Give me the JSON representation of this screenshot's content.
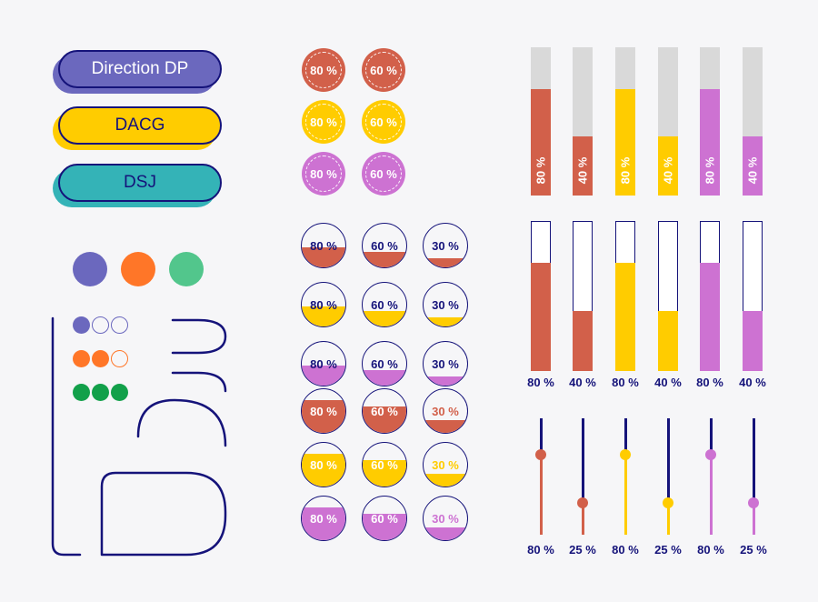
{
  "colors": {
    "navy": "#15137a",
    "purple": "#6b68be",
    "orange": "#ff7628",
    "green": "#52c68c",
    "rust": "#d2604a",
    "yellow": "#ffcc00",
    "violet": "#cd72d2",
    "teal": "#34b3b7",
    "gray": "#d9d9d9",
    "lime": "#12a04a"
  },
  "buttons": [
    {
      "label": "Direction DP",
      "bg": "#6b68be",
      "text": "#ffffff"
    },
    {
      "label": "DACG",
      "bg": "#ffcc00",
      "text": "#15137a"
    },
    {
      "label": "DSJ",
      "bg": "#34b3b7",
      "text": "#15137a"
    }
  ],
  "dashed_rings": [
    {
      "value": "80 %",
      "color": "#d2604a"
    },
    {
      "value": "60 %",
      "color": "#d2604a"
    },
    {
      "value": "80 %",
      "color": "#ffcc00"
    },
    {
      "value": "60 %",
      "color": "#ffcc00"
    },
    {
      "value": "80 %",
      "color": "#cd72d2"
    },
    {
      "value": "60 %",
      "color": "#cd72d2"
    }
  ],
  "fill_circles": [
    {
      "value": "80 %",
      "fraction": 0.45,
      "color": "#d2604a",
      "text": "#15137a"
    },
    {
      "value": "60 %",
      "fraction": 0.35,
      "color": "#d2604a",
      "text": "#15137a"
    },
    {
      "value": "30 %",
      "fraction": 0.2,
      "color": "#d2604a",
      "text": "#15137a"
    },
    {
      "value": "80 %",
      "fraction": 0.45,
      "color": "#ffcc00",
      "text": "#15137a"
    },
    {
      "value": "60 %",
      "fraction": 0.35,
      "color": "#ffcc00",
      "text": "#15137a"
    },
    {
      "value": "30 %",
      "fraction": 0.2,
      "color": "#ffcc00",
      "text": "#15137a"
    },
    {
      "value": "80 %",
      "fraction": 0.45,
      "color": "#cd72d2",
      "text": "#15137a"
    },
    {
      "value": "60 %",
      "fraction": 0.35,
      "color": "#cd72d2",
      "text": "#15137a"
    },
    {
      "value": "30 %",
      "fraction": 0.2,
      "color": "#cd72d2",
      "text": "#15137a"
    },
    {
      "value": "80 %",
      "fraction": 0.75,
      "color": "#d2604a",
      "text": "#ffffff"
    },
    {
      "value": "60 %",
      "fraction": 0.6,
      "color": "#d2604a",
      "text": "#ffffff"
    },
    {
      "value": "30 %",
      "fraction": 0.3,
      "color": "#d2604a",
      "text": "#d2604a"
    },
    {
      "value": "80 %",
      "fraction": 0.75,
      "color": "#ffcc00",
      "text": "#ffffff"
    },
    {
      "value": "60 %",
      "fraction": 0.6,
      "color": "#ffcc00",
      "text": "#ffffff"
    },
    {
      "value": "30 %",
      "fraction": 0.3,
      "color": "#ffcc00",
      "text": "#ffcc00"
    },
    {
      "value": "80 %",
      "fraction": 0.75,
      "color": "#cd72d2",
      "text": "#ffffff"
    },
    {
      "value": "60 %",
      "fraction": 0.6,
      "color": "#cd72d2",
      "text": "#ffffff"
    },
    {
      "value": "30 %",
      "fraction": 0.3,
      "color": "#cd72d2",
      "text": "#cd72d2"
    }
  ],
  "solid_bars": [
    {
      "value": "80 %",
      "fraction": 0.72,
      "color": "#d2604a"
    },
    {
      "value": "40 %",
      "fraction": 0.4,
      "color": "#d2604a"
    },
    {
      "value": "80 %",
      "fraction": 0.72,
      "color": "#ffcc00"
    },
    {
      "value": "40 %",
      "fraction": 0.4,
      "color": "#ffcc00"
    },
    {
      "value": "80 %",
      "fraction": 0.72,
      "color": "#cd72d2"
    },
    {
      "value": "40 %",
      "fraction": 0.4,
      "color": "#cd72d2"
    }
  ],
  "outline_bars": [
    {
      "value": "80 %",
      "fraction": 0.72,
      "color": "#d2604a"
    },
    {
      "value": "40 %",
      "fraction": 0.4,
      "color": "#d2604a"
    },
    {
      "value": "80 %",
      "fraction": 0.72,
      "color": "#ffcc00"
    },
    {
      "value": "40 %",
      "fraction": 0.4,
      "color": "#ffcc00"
    },
    {
      "value": "80 %",
      "fraction": 0.72,
      "color": "#cd72d2"
    },
    {
      "value": "40 %",
      "fraction": 0.4,
      "color": "#cd72d2"
    }
  ],
  "sliders": [
    {
      "value": "80 %",
      "fraction": 0.69,
      "color": "#d2604a"
    },
    {
      "value": "25 %",
      "fraction": 0.27,
      "color": "#d2604a"
    },
    {
      "value": "80 %",
      "fraction": 0.69,
      "color": "#ffcc00"
    },
    {
      "value": "25 %",
      "fraction": 0.27,
      "color": "#ffcc00"
    },
    {
      "value": "80 %",
      "fraction": 0.69,
      "color": "#cd72d2"
    },
    {
      "value": "25 %",
      "fraction": 0.27,
      "color": "#cd72d2"
    }
  ]
}
